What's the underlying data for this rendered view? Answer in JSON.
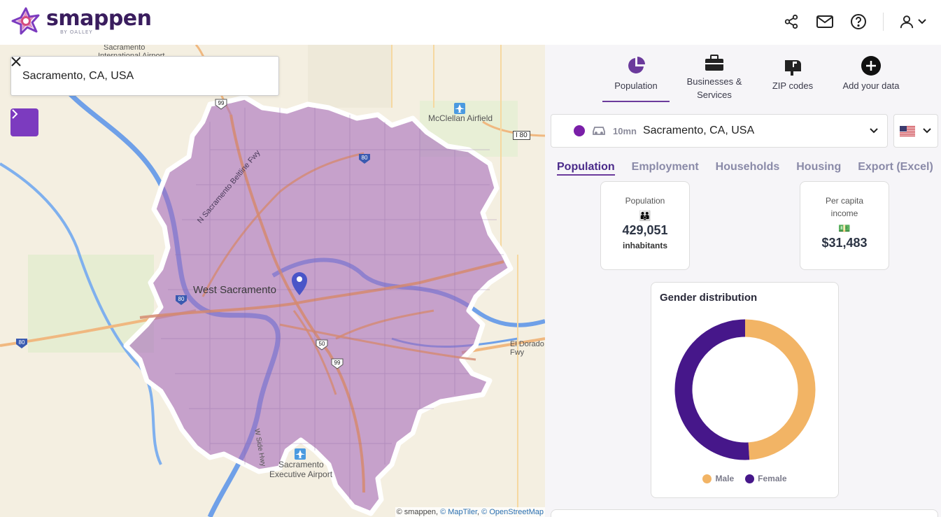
{
  "header": {
    "logo_text": "smappen",
    "logo_sub": "BY OALLEY",
    "icons": [
      "share-icon",
      "mail-icon",
      "help-icon",
      "user-icon"
    ]
  },
  "map": {
    "search_value": "Sacramento, CA, USA",
    "labels": {
      "west_sacramento": "West Sacramento",
      "airport_top": "Sacramento",
      "airport_top2": "International Airport",
      "mcclellan": "McClellan Airfield",
      "exec_airport1": "Sacramento",
      "exec_airport2": "Executive Airport",
      "beltline": "N Sacramento Beltline Fwy",
      "el_dorado": "El Dorado Fwy",
      "w_side": "W Side Hwy",
      "i80_box": "I 80",
      "shields": [
        "99",
        "80",
        "80",
        "50",
        "99",
        "80"
      ]
    },
    "attribution": {
      "prefix": "© smappen,",
      "maptiler": "© MapTiler",
      "sep": ",",
      "osm": "© OpenStreetMap"
    },
    "colors": {
      "isochrone": "#a05cb5",
      "water": "#6fa0e8",
      "road": "#e8a06a"
    }
  },
  "panel": {
    "top_tabs": [
      {
        "label": "Population",
        "icon": "pie-chart-icon"
      },
      {
        "label": "Businesses & Services",
        "icon": "briefcase-icon"
      },
      {
        "label": "ZIP codes",
        "icon": "mailbox-icon"
      },
      {
        "label": "Add your data",
        "icon": "add-circle-icon"
      }
    ],
    "selector": {
      "mode": "10mn",
      "place": "Sacramento, CA, USA",
      "color": "#7a1fa8"
    },
    "sub_tabs": [
      "Population",
      "Employment",
      "Households",
      "Housing",
      "Export (Excel)"
    ],
    "stats": {
      "population": {
        "label": "Population",
        "value": "429,051",
        "unit": "inhabitants",
        "emoji": "👪"
      },
      "income": {
        "label1": "Per capita",
        "label2": "income",
        "value": "$31,483",
        "emoji": "💵"
      }
    },
    "gender": {
      "title": "Gender distribution",
      "male_label": "Male",
      "female_label": "Female",
      "male_share": 0.49,
      "female_share": 0.51,
      "male_color": "#f2b465",
      "female_color": "#46178a"
    }
  }
}
